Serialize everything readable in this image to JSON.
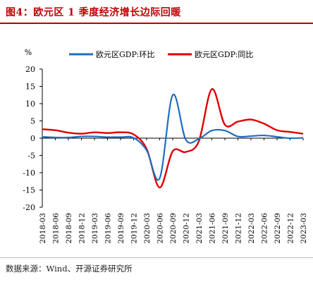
{
  "title": "图4：欧元区 1 季度经济增长边际回暖",
  "source": "数据来源：Wind、开源证券研究所",
  "chart_data": {
    "type": "line",
    "ylabel": "%",
    "ylim": [
      -20,
      20
    ],
    "yticks": [
      -20,
      -15,
      -10,
      -5,
      0,
      5,
      10,
      15,
      20
    ],
    "x": [
      "2018-03",
      "2018-06",
      "2018-09",
      "2018-12",
      "2019-03",
      "2019-06",
      "2019-09",
      "2019-12",
      "2020-03",
      "2020-06",
      "2020-09",
      "2020-12",
      "2021-03",
      "2021-06",
      "2021-09",
      "2021-12",
      "2022-03",
      "2022-06",
      "2022-09",
      "2022-12",
      "2023-03"
    ],
    "series": [
      {
        "name": "欧元区GDP:环比",
        "color": "#1f6fbf",
        "values": [
          0.4,
          0.2,
          0.2,
          0.5,
          0.5,
          0.3,
          0.3,
          0.1,
          -3.5,
          -11.6,
          12.5,
          -0.4,
          -0.2,
          2.2,
          2.2,
          0.5,
          0.6,
          0.8,
          0.4,
          0.0,
          0.1
        ]
      },
      {
        "name": "欧元区GDP:同比",
        "color": "#e00000",
        "values": [
          2.6,
          2.3,
          1.6,
          1.3,
          1.7,
          1.5,
          1.7,
          1.1,
          -3.1,
          -14.3,
          -3.8,
          -4.0,
          -0.9,
          14.2,
          3.9,
          4.8,
          5.4,
          4.2,
          2.3,
          1.8,
          1.3
        ]
      }
    ]
  }
}
